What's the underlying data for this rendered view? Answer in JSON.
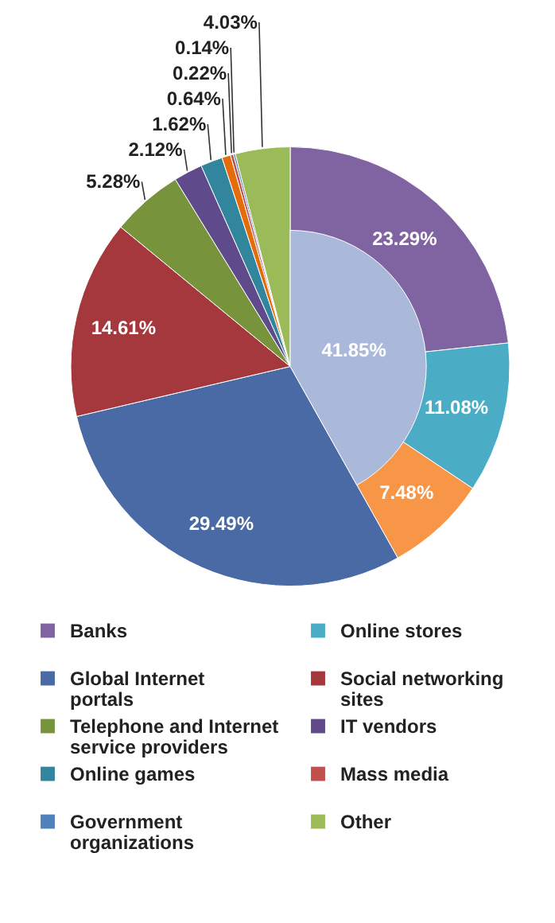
{
  "chart_data": {
    "type": "pie",
    "categories": [
      "Banks",
      "Online stores",
      null,
      "Global Internet portals",
      "Social networking sites",
      "Telephone and Internet service providers",
      "IT vendors",
      "Online games",
      null,
      "Mass media",
      "Government organizations",
      "Other"
    ],
    "values": [
      23.29,
      11.08,
      7.48,
      29.49,
      14.61,
      5.28,
      2.12,
      1.62,
      0.64,
      0.22,
      0.14,
      4.03
    ],
    "colors": [
      "#8064a2",
      "#4bacc6",
      "#f79646",
      "#4a6aa5",
      "#a5383c",
      "#77933c",
      "#5f4a8b",
      "#31859c",
      "#e46c0a",
      "#c0504d",
      "#4f81bd",
      "#9bbb59"
    ],
    "value_labels": [
      "23.29%",
      "11.08%",
      "7.48%",
      "29.49%",
      "14.61%",
      "5.28%",
      "2.12%",
      "1.62%",
      "0.64%",
      "0.22%",
      "0.14%",
      "4.03%"
    ],
    "series": [
      {
        "type": "pie",
        "colors": [
          "#aab8da",
          null,
          null,
          null,
          null,
          null,
          null,
          null,
          null,
          null,
          null,
          null
        ],
        "values": [
          41.85,
          null,
          null,
          null,
          null,
          null,
          null,
          null,
          null,
          null,
          null,
          null
        ],
        "value_labels": [
          "41.85%",
          null,
          null,
          null,
          null,
          null,
          null,
          null,
          null,
          null,
          null,
          null
        ]
      }
    ],
    "legend": "bottom"
  }
}
